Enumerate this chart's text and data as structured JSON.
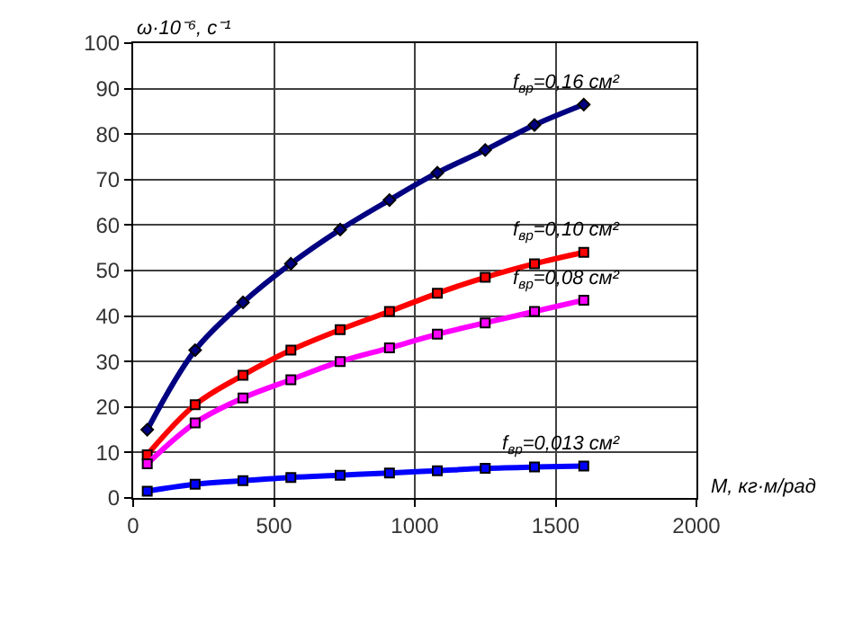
{
  "chart_data": {
    "type": "line",
    "xlabel": "M, кг·м/рад",
    "ylabel": "ω·10⁻⁶, с⁻¹",
    "x": [
      50,
      220,
      390,
      560,
      735,
      910,
      1080,
      1250,
      1425,
      1600
    ],
    "series": [
      {
        "name": "f$_{вр}$=0,16 см²",
        "color": "#000080",
        "marker": "diamond",
        "values": [
          15,
          32.5,
          43,
          51.5,
          59,
          65.5,
          71.5,
          76.5,
          82,
          86.5
        ]
      },
      {
        "name": "f$_{вр}$=0,10 см²",
        "color": "#ff0000",
        "values": [
          9.5,
          20.5,
          27,
          32.5,
          37,
          41,
          45,
          48.5,
          51.5,
          54
        ]
      },
      {
        "name": "f$_{вр}$=0,08 см²",
        "color": "#ff00ff",
        "values": [
          7.5,
          16.5,
          22,
          26,
          30,
          33,
          36,
          38.5,
          41,
          43.5
        ]
      },
      {
        "name": "f$_{вр}$=0,013 см²",
        "color": "#0000ff",
        "values": [
          1.5,
          3,
          3.8,
          4.5,
          5,
          5.5,
          6,
          6.5,
          6.8,
          7
        ]
      }
    ],
    "xlim": [
      0,
      2000
    ],
    "xticks": [
      0,
      500,
      1000,
      1500,
      2000
    ],
    "ylim": [
      0,
      100
    ],
    "yticks": [
      0,
      10,
      20,
      30,
      40,
      50,
      60,
      70,
      80,
      90,
      100
    ],
    "grid": true,
    "legend": false,
    "marker": "square",
    "line_style": "solid"
  }
}
